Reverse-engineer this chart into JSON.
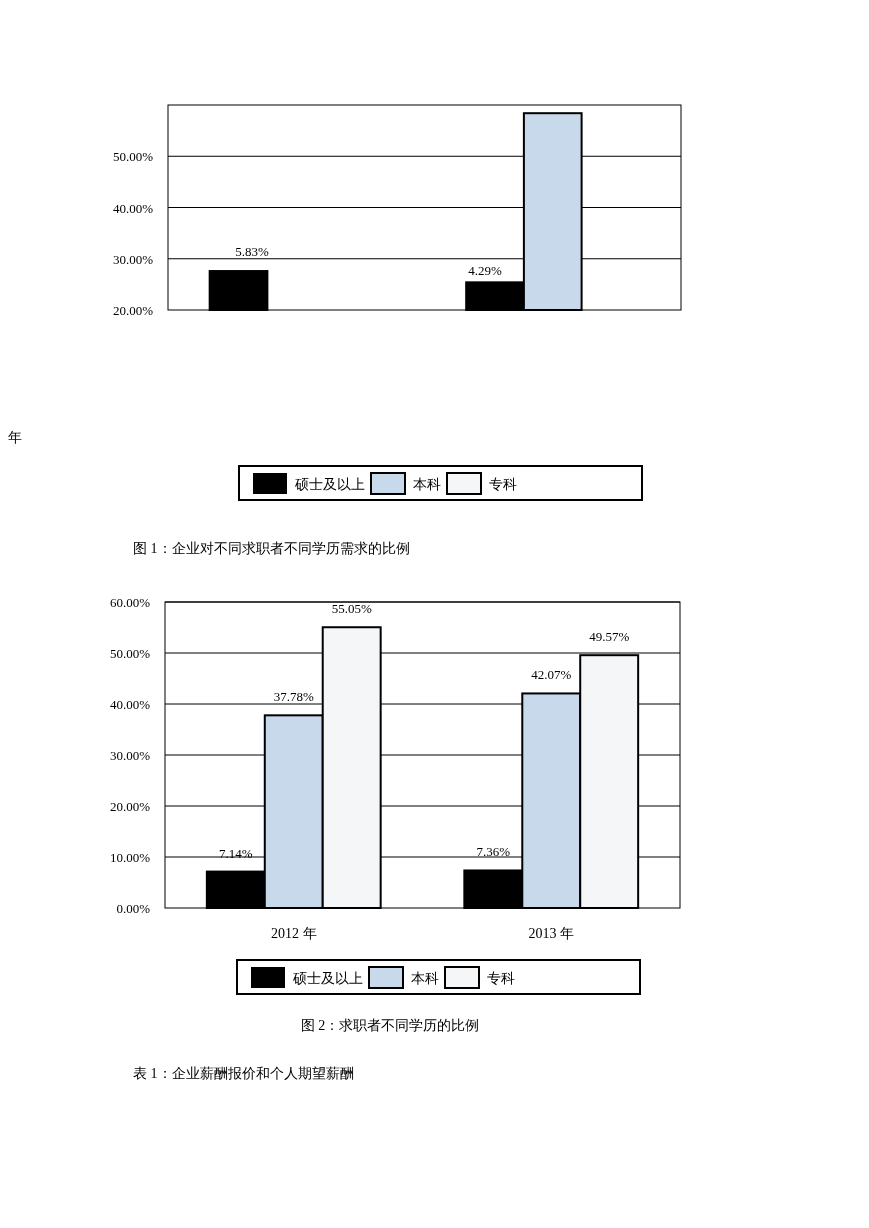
{
  "chart_data": [
    {
      "type": "bar",
      "categories": [
        null,
        null
      ],
      "series": [
        {
          "name": "硕士及以上",
          "color": "#000000",
          "values": [
            27.6,
            25.4
          ]
        },
        {
          "name": "本科",
          "color": "#c9d9ec",
          "values": [
            null,
            58.4
          ]
        },
        {
          "name": "专科",
          "color": "#f4f6f8",
          "values": [
            null,
            null
          ]
        }
      ],
      "ylim": [
        20,
        60
      ],
      "yticks": [
        {
          "value": 20,
          "label": "20.00%"
        },
        {
          "value": 30,
          "label": "30.00%"
        },
        {
          "value": 40,
          "label": "40.00%"
        },
        {
          "value": 50,
          "label": "50.00%"
        }
      ],
      "grid": "y",
      "legend": "bottom",
      "annotations": [
        "5.83%",
        "4.29%",
        "年",
        "图 1：企业对不同求职者不同学历需求的比例"
      ]
    },
    {
      "type": "bar",
      "categories": [
        "2012 年",
        "2013 年"
      ],
      "series": [
        {
          "name": "硕士及以上",
          "color": "#000000",
          "values": [
            7.14,
            7.36
          ],
          "value_labels": [
            "7.14%",
            "7.36%"
          ]
        },
        {
          "name": "本科",
          "color": "#c9d9ec",
          "values": [
            37.78,
            42.07
          ],
          "value_labels": [
            "37.78%",
            "42.07%"
          ]
        },
        {
          "name": "专科",
          "color": "#f4f6f8",
          "values": [
            55.05,
            49.57
          ],
          "value_labels": [
            "55.05%",
            "49.57%"
          ]
        }
      ],
      "ylim": [
        0,
        60
      ],
      "yticks": [
        {
          "value": 0,
          "label": "0.00%"
        },
        {
          "value": 10,
          "label": "10.00%"
        },
        {
          "value": 20,
          "label": "20.00%"
        },
        {
          "value": 30,
          "label": "30.00%"
        },
        {
          "value": 40,
          "label": "40.00%"
        },
        {
          "value": 50,
          "label": "50.00%"
        },
        {
          "value": 60,
          "label": "60.00%"
        }
      ],
      "grid": "y",
      "legend": "bottom",
      "annotations": [
        "图 2：求职者不同学历的比例",
        "表 1：企业薪酬报价和个人期望薪酬"
      ]
    }
  ]
}
